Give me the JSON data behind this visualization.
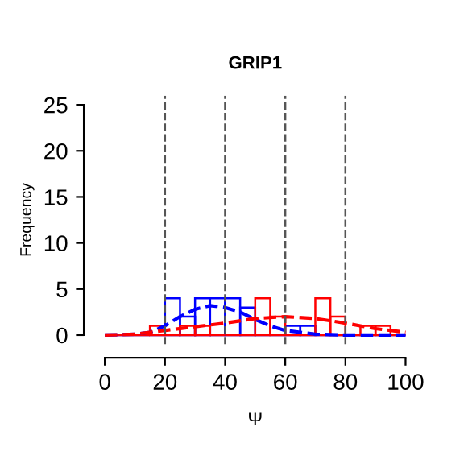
{
  "chart_data": {
    "type": "histogram",
    "title": "GRIP1",
    "xlabel": "Ψ",
    "ylabel": "Frequency",
    "bins": [
      0,
      5,
      10,
      15,
      20,
      25,
      30,
      35,
      40,
      45,
      50,
      55,
      60,
      65,
      70,
      75,
      80,
      85,
      90,
      95,
      100
    ],
    "series": [
      {
        "color": "#0000ff",
        "values": [
          0,
          0,
          0,
          0,
          4,
          2,
          4,
          4,
          4,
          3,
          0,
          0,
          1,
          1,
          0,
          0,
          0,
          0,
          0,
          0
        ]
      },
      {
        "color": "#ff0000",
        "values": [
          0,
          0,
          0,
          1,
          0,
          1,
          1,
          0,
          0,
          0,
          4,
          2,
          0,
          0,
          4,
          2,
          0,
          1,
          1,
          0
        ]
      },
      {
        "type": "line",
        "color": "#0000ff",
        "x": [
          0,
          10,
          15,
          20,
          25,
          30,
          35,
          40,
          45,
          50,
          55,
          60,
          65,
          70,
          80,
          90,
          100
        ],
        "values": [
          0,
          0.1,
          0.3,
          1,
          2,
          2.8,
          3.2,
          3,
          2.5,
          1.7,
          1,
          0.5,
          0.3,
          0.1,
          0,
          0,
          0
        ]
      },
      {
        "type": "line",
        "color": "#ff0000",
        "x": [
          0,
          10,
          20,
          30,
          40,
          50,
          60,
          70,
          80,
          90,
          100
        ],
        "values": [
          0,
          0.1,
          0.5,
          0.9,
          1.3,
          1.8,
          2,
          1.8,
          1.3,
          0.7,
          0.3
        ]
      }
    ],
    "line_style": "dashed",
    "ref_lines": [
      {
        "axis": "x",
        "value": 20,
        "line_style": "dashed",
        "color": "#555555"
      },
      {
        "axis": "x",
        "value": 40,
        "line_style": "dashed",
        "color": "#555555"
      },
      {
        "axis": "x",
        "value": 60,
        "line_style": "dashed",
        "color": "#555555"
      },
      {
        "axis": "x",
        "value": 80,
        "line_style": "dashed",
        "color": "#555555"
      }
    ],
    "xlim": [
      0,
      100
    ],
    "xticks": [
      0,
      20,
      40,
      60,
      80,
      100
    ],
    "ylim": [
      0,
      25
    ],
    "yticks": [
      0,
      5,
      10,
      15,
      20,
      25
    ]
  }
}
